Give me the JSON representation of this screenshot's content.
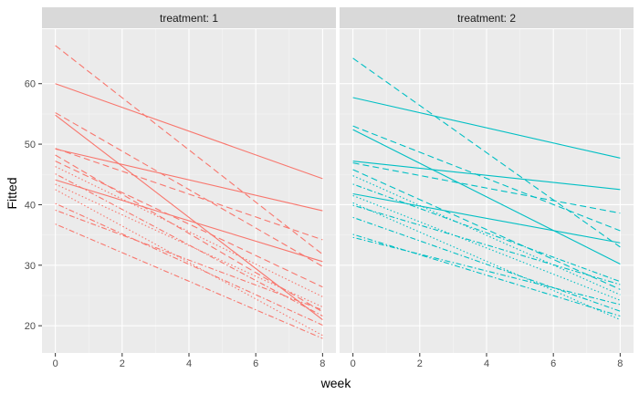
{
  "colors": {
    "panel_bg": "#EBEBEB",
    "strip_bg": "#D9D9D9",
    "grid_major": "#FFFFFF",
    "grid_minor": "#F5F5F5",
    "tick": "#333333",
    "treatment_1": "#F8766D",
    "treatment_2": "#00BFC4"
  },
  "chart_data": {
    "type": "line",
    "facet_var": "treatment",
    "xlabel": "week",
    "ylabel": "Fitted",
    "xlim": [
      -0.4,
      8.4
    ],
    "ylim": [
      15.5,
      69.0
    ],
    "x_ticks": [
      0,
      2,
      4,
      6,
      8
    ],
    "y_ticks": [
      20,
      30,
      40,
      50,
      60
    ],
    "grid": true,
    "legend": "none",
    "panels": [
      {
        "strip_label": "treatment: 1",
        "color_key": "treatment_1",
        "series": [
          {
            "linetype": "solid",
            "x": [
              0,
              8
            ],
            "y": [
              60.0,
              44.3
            ]
          },
          {
            "linetype": "solid",
            "x": [
              0,
              8
            ],
            "y": [
              54.8,
              21.0
            ]
          },
          {
            "linetype": "solid",
            "x": [
              0,
              8
            ],
            "y": [
              49.2,
              39.0
            ]
          },
          {
            "linetype": "solid",
            "x": [
              0,
              8
            ],
            "y": [
              44.1,
              30.6
            ]
          },
          {
            "linetype": "dashed",
            "x": [
              0,
              8
            ],
            "y": [
              66.3,
              31.8
            ]
          },
          {
            "linetype": "dashed",
            "x": [
              0,
              8
            ],
            "y": [
              55.2,
              29.8
            ]
          },
          {
            "linetype": "dashed",
            "x": [
              0,
              8
            ],
            "y": [
              49.3,
              34.2
            ]
          },
          {
            "linetype": "dashed",
            "x": [
              0,
              8
            ],
            "y": [
              48.2,
              22.3
            ]
          },
          {
            "linetype": "dashed",
            "x": [
              0,
              8
            ],
            "y": [
              47.2,
              26.4
            ]
          },
          {
            "linetype": "dotted",
            "x": [
              0,
              8
            ],
            "y": [
              46.3,
              24.8
            ]
          },
          {
            "linetype": "dotted",
            "x": [
              0,
              8
            ],
            "y": [
              43.4,
              23.1
            ]
          },
          {
            "linetype": "dotted",
            "x": [
              0,
              8
            ],
            "y": [
              42.5,
              18.4
            ]
          },
          {
            "linetype": "dotdash",
            "x": [
              0,
              8
            ],
            "y": [
              45.1,
              21.6
            ]
          },
          {
            "linetype": "dotdash",
            "x": [
              0,
              8
            ],
            "y": [
              40.2,
              20.1
            ]
          },
          {
            "linetype": "dotdash",
            "x": [
              0,
              8
            ],
            "y": [
              39.1,
              22.6
            ]
          },
          {
            "linetype": "dotdash",
            "x": [
              0,
              8
            ],
            "y": [
              36.8,
              17.9
            ]
          }
        ]
      },
      {
        "strip_label": "treatment: 2",
        "color_key": "treatment_2",
        "series": [
          {
            "linetype": "solid",
            "x": [
              0,
              8
            ],
            "y": [
              57.7,
              47.7
            ]
          },
          {
            "linetype": "solid",
            "x": [
              0,
              8
            ],
            "y": [
              52.4,
              30.2
            ]
          },
          {
            "linetype": "solid",
            "x": [
              0,
              8
            ],
            "y": [
              47.2,
              42.5
            ]
          },
          {
            "linetype": "solid",
            "x": [
              0,
              8
            ],
            "y": [
              41.8,
              33.7
            ]
          },
          {
            "linetype": "dashed",
            "x": [
              0,
              8
            ],
            "y": [
              64.2,
              33.0
            ]
          },
          {
            "linetype": "dashed",
            "x": [
              0,
              8
            ],
            "y": [
              53.0,
              35.7
            ]
          },
          {
            "linetype": "dashed",
            "x": [
              0,
              8
            ],
            "y": [
              46.9,
              38.6
            ]
          },
          {
            "linetype": "dashed",
            "x": [
              0,
              8
            ],
            "y": [
              45.8,
              26.0
            ]
          },
          {
            "linetype": "dotted",
            "x": [
              0,
              8
            ],
            "y": [
              44.8,
              25.1
            ]
          },
          {
            "linetype": "dotted",
            "x": [
              0,
              8
            ],
            "y": [
              41.5,
              24.2
            ]
          },
          {
            "linetype": "dotted",
            "x": [
              0,
              8
            ],
            "y": [
              40.3,
              21.0
            ]
          },
          {
            "linetype": "dotdash",
            "x": [
              0,
              8
            ],
            "y": [
              43.4,
              27.3
            ]
          },
          {
            "linetype": "dotdash",
            "x": [
              0,
              8
            ],
            "y": [
              39.9,
              26.8
            ]
          },
          {
            "linetype": "dotdash",
            "x": [
              0,
              8
            ],
            "y": [
              37.9,
              22.4
            ]
          },
          {
            "linetype": "dotdash",
            "x": [
              0,
              8
            ],
            "y": [
              35.1,
              21.6
            ]
          },
          {
            "linetype": "dotdash",
            "x": [
              0,
              8
            ],
            "y": [
              34.6,
              23.5
            ]
          }
        ]
      }
    ]
  }
}
